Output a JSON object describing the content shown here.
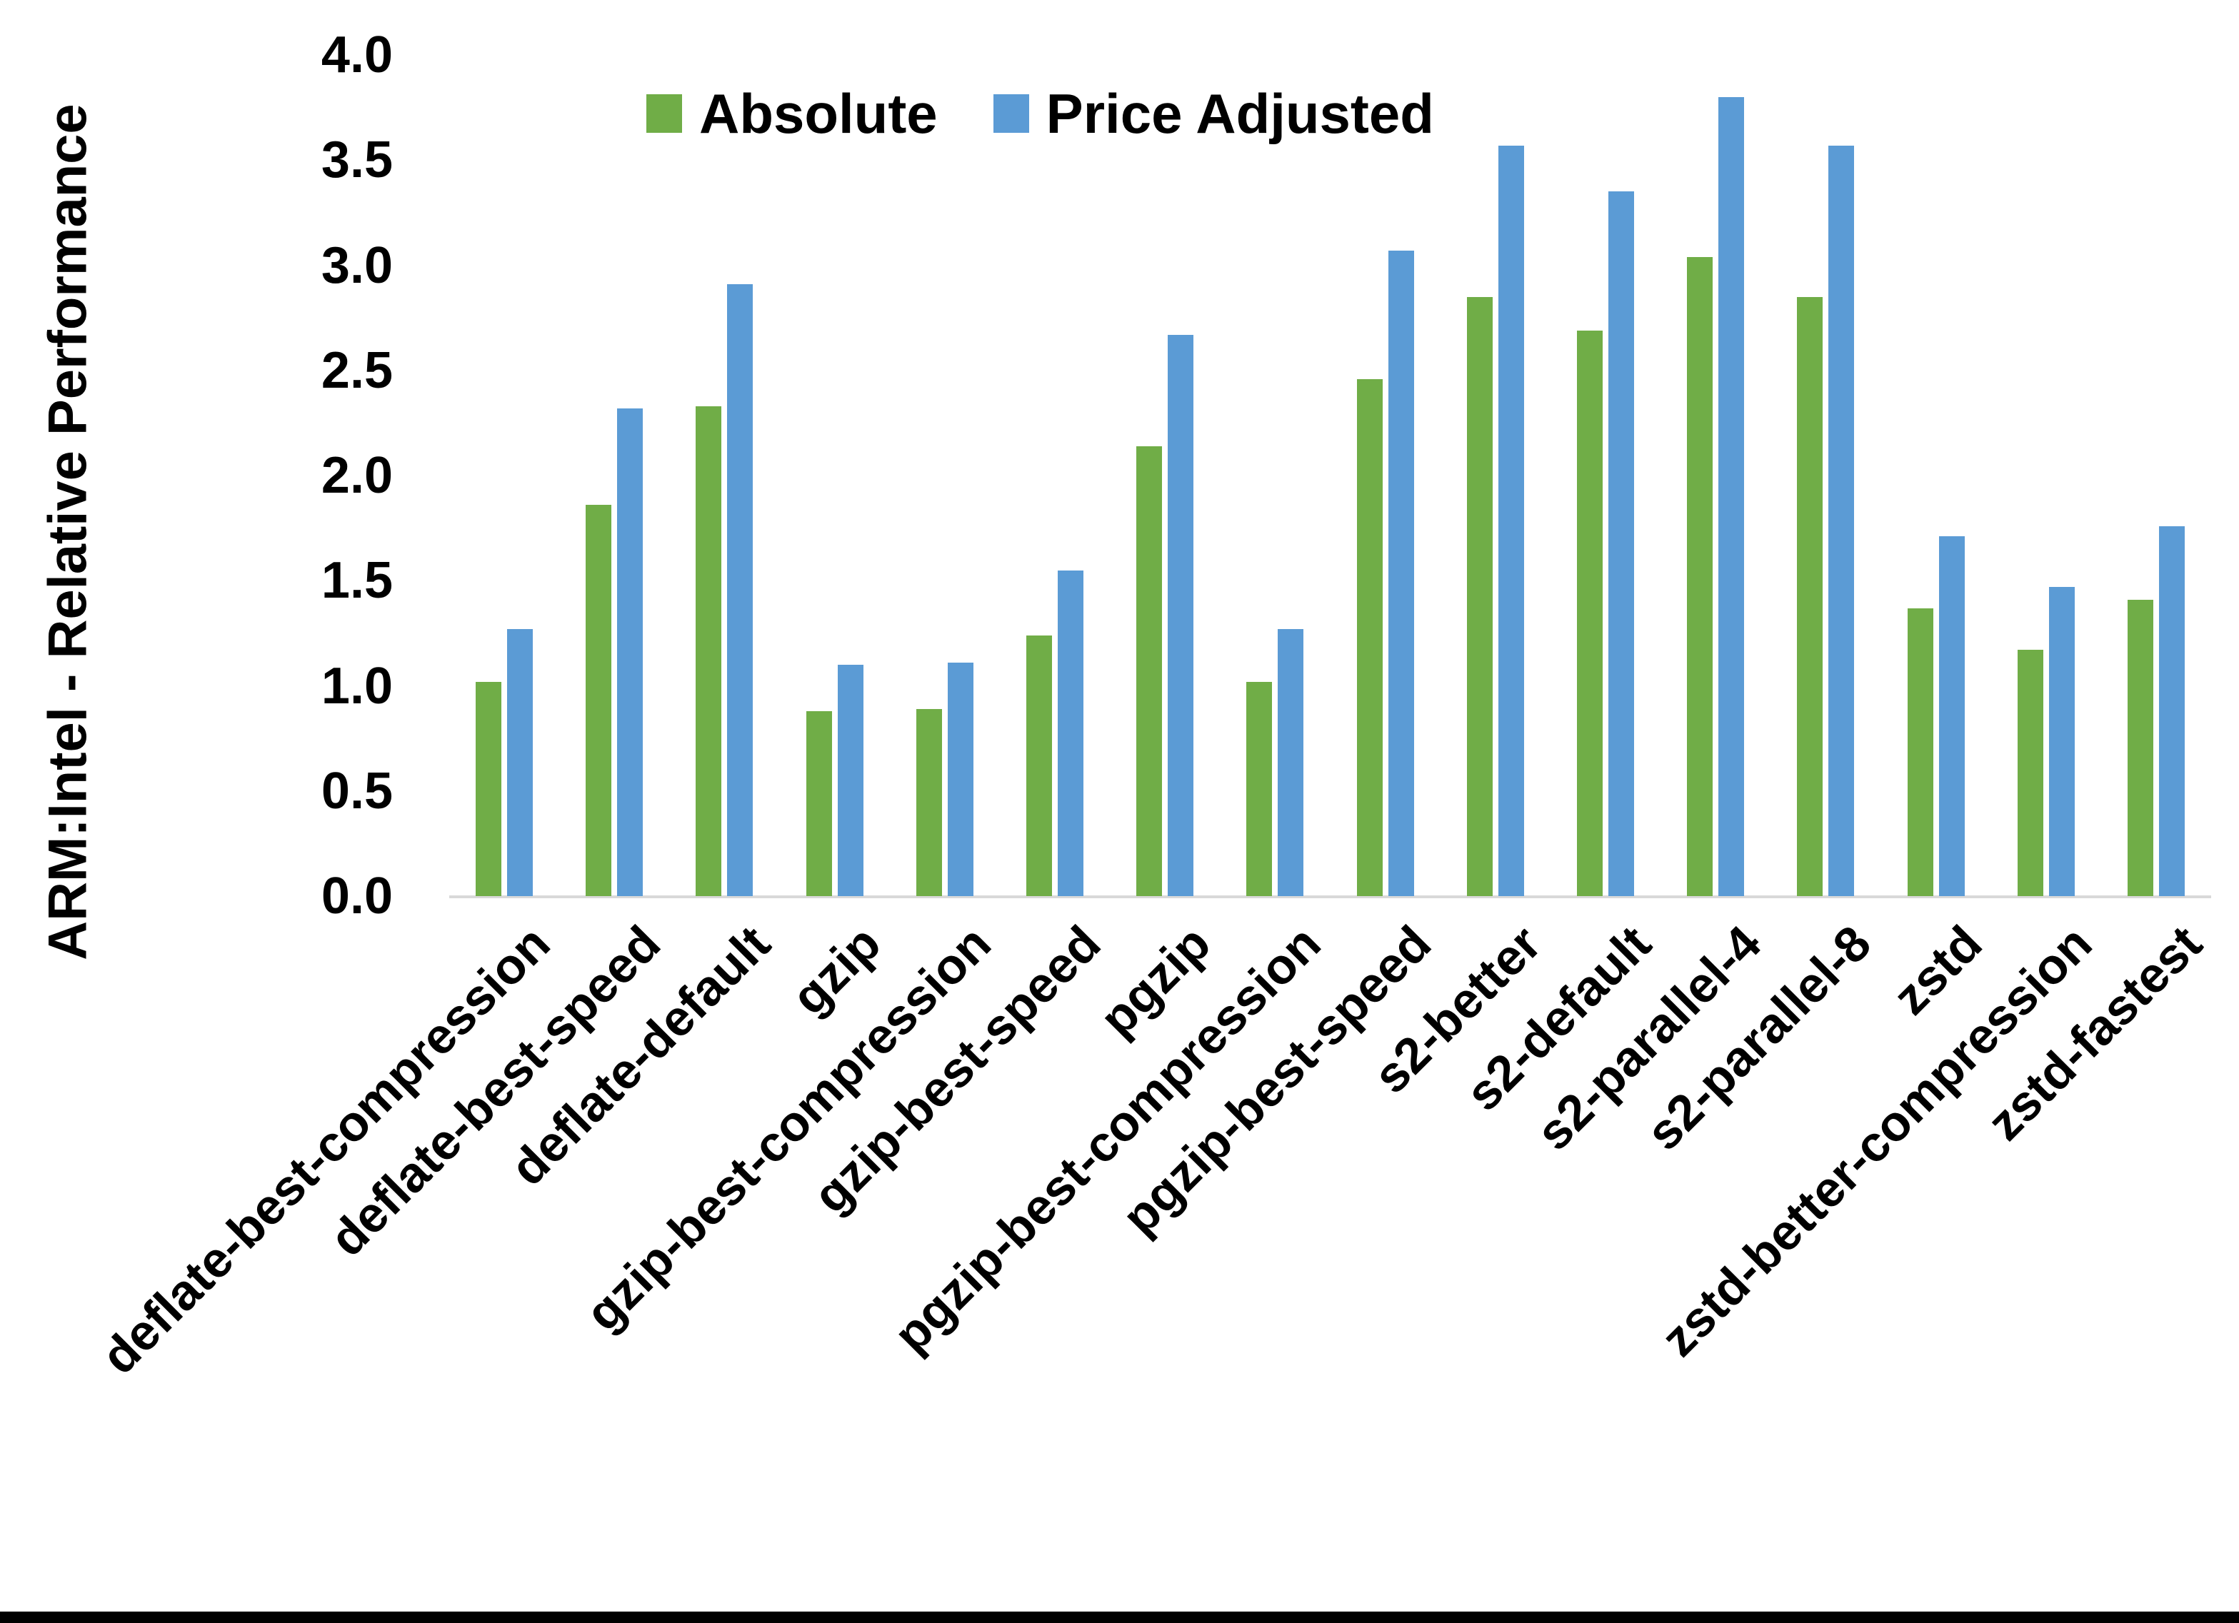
{
  "chart_data": {
    "type": "bar",
    "title": "",
    "ylabel": "ARM:Intel - Relative Performance",
    "xlabel": "",
    "ylim": [
      0.0,
      4.0
    ],
    "ytick_step": 0.5,
    "yticks": [
      "0.0",
      "0.5",
      "1.0",
      "1.5",
      "2.0",
      "2.5",
      "3.0",
      "3.5",
      "4.0"
    ],
    "grid": false,
    "legend_position": "top",
    "categories": [
      "deflate-best-compression",
      "deflate-best-speed",
      "deflate-default",
      "gzip",
      "gzip-best-compression",
      "gzip-best-speed",
      "pgzip",
      "pgzip-best-compression",
      "pgzip-best-speed",
      "s2-better",
      "s2-default",
      "s2-parallel-4",
      "s2-parallel-8",
      "zstd",
      "zstd-better-compression",
      "zstd-fastest"
    ],
    "series": [
      {
        "name": "Absolute",
        "color": "#70AD47",
        "values": [
          1.02,
          1.86,
          2.33,
          0.88,
          0.89,
          1.24,
          2.14,
          1.02,
          2.46,
          2.85,
          2.69,
          3.04,
          2.85,
          1.37,
          1.17,
          1.41
        ]
      },
      {
        "name": "Price Adjusted",
        "color": "#5B9BD5",
        "values": [
          1.27,
          2.32,
          2.91,
          1.1,
          1.11,
          1.55,
          2.67,
          1.27,
          3.07,
          3.57,
          3.35,
          3.8,
          3.57,
          1.71,
          1.47,
          1.76
        ]
      }
    ],
    "colors": {
      "axis_line": "#d9d9d9",
      "frame": "#000000",
      "text": "#000000"
    }
  }
}
